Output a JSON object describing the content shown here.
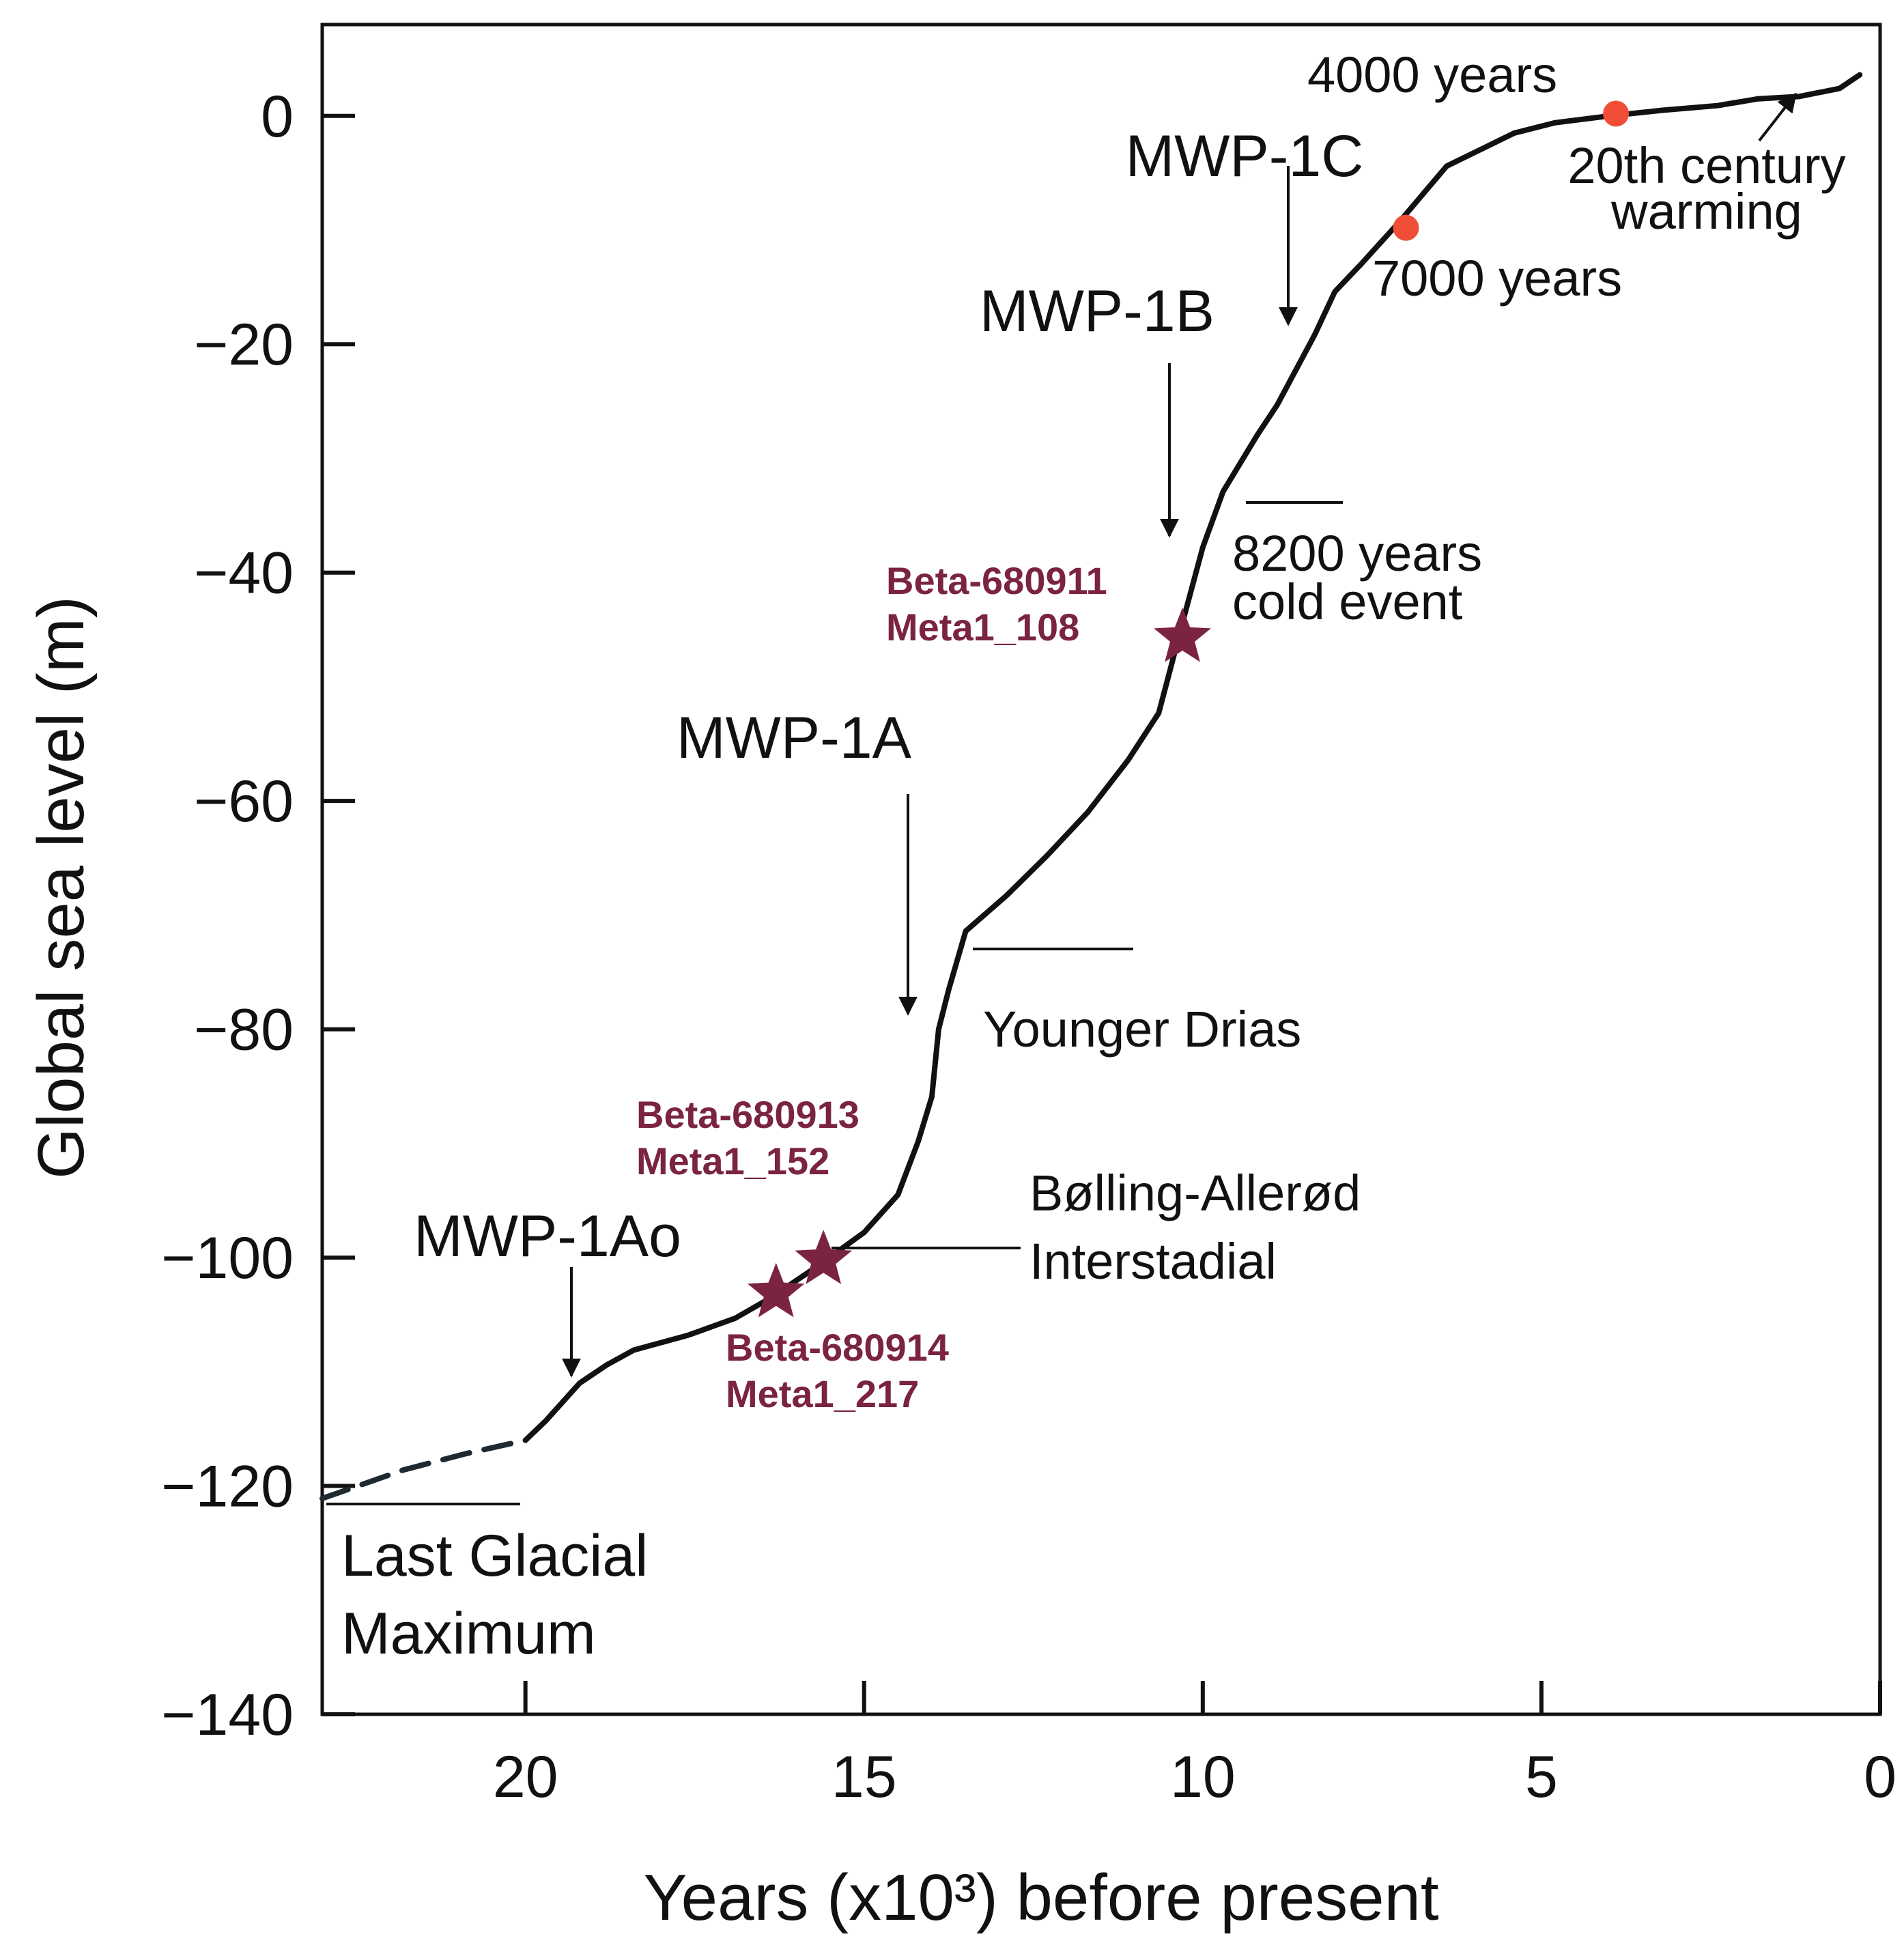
{
  "chart_data": {
    "type": "line",
    "xlabel": "Years (x10³) before present",
    "ylabel": "Global sea level (m)",
    "xlim": [
      23,
      0
    ],
    "ylim": [
      -140,
      8
    ],
    "x_axis_reversed": true,
    "x_ticks": [
      20,
      15,
      10,
      5,
      0
    ],
    "y_ticks": [
      0,
      -20,
      -40,
      -60,
      -80,
      -100,
      -120,
      -140
    ],
    "x_tick_labels": [
      "20",
      "15",
      "10",
      "5",
      "0"
    ],
    "y_tick_labels": [
      "0",
      "−20",
      "−40",
      "−60",
      "−80",
      "−100",
      "−120",
      "−140"
    ],
    "line_color": "#111111",
    "marker_color": "#f04e37",
    "sample_color": "#7b2342",
    "dashed_segment": [
      [
        23.0,
        -121.1
      ],
      [
        21.8,
        -118.6
      ],
      [
        20.9,
        -117.2
      ],
      [
        20.0,
        -116.0
      ]
    ],
    "series": [
      {
        "values": [
          [
            20.0,
            -116.0
          ],
          [
            19.7,
            -114.3
          ],
          [
            19.2,
            -111.0
          ],
          [
            18.8,
            -109.4
          ],
          [
            18.4,
            -108.1
          ],
          [
            17.6,
            -106.8
          ],
          [
            16.9,
            -105.3
          ],
          [
            16.4,
            -103.6
          ],
          [
            15.7,
            -100.8
          ],
          [
            15.0,
            -97.8
          ],
          [
            14.5,
            -94.5
          ],
          [
            14.2,
            -89.8
          ],
          [
            14.0,
            -85.9
          ],
          [
            13.9,
            -80.0
          ],
          [
            13.75,
            -76.5
          ],
          [
            13.5,
            -71.4
          ],
          [
            12.9,
            -68.3
          ],
          [
            12.3,
            -64.8
          ],
          [
            11.7,
            -61.0
          ],
          [
            11.1,
            -56.4
          ],
          [
            10.65,
            -52.3
          ],
          [
            10.45,
            -47.8
          ],
          [
            10.25,
            -43.3
          ],
          [
            10.0,
            -37.8
          ],
          [
            9.7,
            -32.9
          ],
          [
            9.2,
            -28.0
          ],
          [
            8.9,
            -25.3
          ],
          [
            8.35,
            -19.2
          ],
          [
            8.05,
            -15.4
          ],
          [
            7.65,
            -12.9
          ],
          [
            7.1,
            -9.3
          ],
          [
            6.4,
            -4.4
          ],
          [
            5.4,
            -1.5
          ],
          [
            4.8,
            -0.6
          ],
          [
            4.0,
            0.0
          ],
          [
            3.2,
            0.5
          ],
          [
            2.4,
            0.9
          ],
          [
            1.8,
            1.5
          ],
          [
            1.2,
            1.7
          ],
          [
            0.6,
            2.4
          ],
          [
            0.3,
            3.6
          ]
        ]
      }
    ],
    "points": [
      {
        "x": 7.0,
        "y": -9.8,
        "label": "7000 years"
      },
      {
        "x": 3.9,
        "y": 0.2,
        "label": "4000 years"
      }
    ],
    "samples": [
      {
        "x": 10.3,
        "y": -45.7,
        "label1": "Beta-680911",
        "label2": "Meta1_108"
      },
      {
        "x": 15.6,
        "y": -100.2,
        "label1": "Beta-680913",
        "label2": "Meta1_152"
      },
      {
        "x": 16.3,
        "y": -103.1,
        "label1": "Beta-680914",
        "label2": "Meta1_217"
      }
    ],
    "annotations": {
      "mwp1c": "MWP-1C",
      "mwp1b": "MWP-1B",
      "mwp1a": "MWP-1A",
      "mwp1ao": "MWP-1Ao",
      "cold_1": "8200 years",
      "cold_2": "cold event",
      "younger_drias": "Younger Drias",
      "bolling_1": "Bølling-Allerød",
      "bolling_2": "Interstadial",
      "lgm_1": "Last Glacial",
      "lgm_2": "Maximum",
      "warming_1": "20th century",
      "warming_2": "warming"
    }
  }
}
